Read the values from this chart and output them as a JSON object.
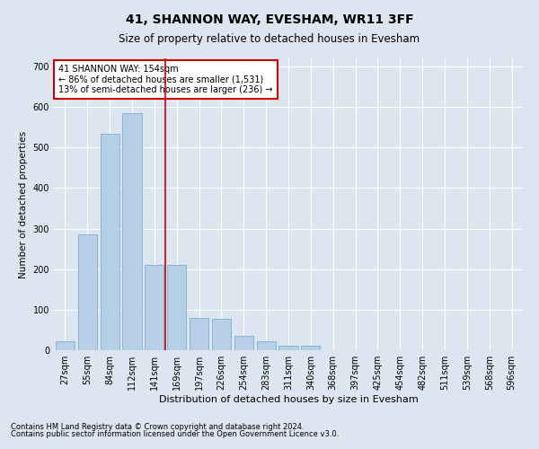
{
  "title": "41, SHANNON WAY, EVESHAM, WR11 3FF",
  "subtitle": "Size of property relative to detached houses in Evesham",
  "xlabel": "Distribution of detached houses by size in Evesham",
  "ylabel": "Number of detached properties",
  "categories": [
    "27sqm",
    "55sqm",
    "84sqm",
    "112sqm",
    "141sqm",
    "169sqm",
    "197sqm",
    "226sqm",
    "254sqm",
    "283sqm",
    "311sqm",
    "340sqm",
    "368sqm",
    "397sqm",
    "425sqm",
    "454sqm",
    "482sqm",
    "511sqm",
    "539sqm",
    "568sqm",
    "596sqm"
  ],
  "values": [
    22,
    285,
    535,
    585,
    210,
    210,
    80,
    78,
    36,
    22,
    10,
    10,
    0,
    0,
    0,
    0,
    0,
    0,
    0,
    0,
    0
  ],
  "bar_color": "#b8cfe8",
  "bar_edge_color": "#7bafd4",
  "highlight_bar_index": 4,
  "vline_color": "#cc0000",
  "vline_x": 4.5,
  "annotation_text": "41 SHANNON WAY: 154sqm\n← 86% of detached houses are smaller (1,531)\n13% of semi-detached houses are larger (236) →",
  "annotation_box_color": "white",
  "annotation_box_edge_color": "#cc0000",
  "ylim": [
    0,
    720
  ],
  "yticks": [
    0,
    100,
    200,
    300,
    400,
    500,
    600,
    700
  ],
  "background_color": "#dde5f0",
  "plot_bg_color": "#dde5f0",
  "footer_line1": "Contains HM Land Registry data © Crown copyright and database right 2024.",
  "footer_line2": "Contains public sector information licensed under the Open Government Licence v3.0.",
  "title_fontsize": 10,
  "subtitle_fontsize": 8.5,
  "ylabel_fontsize": 7.5,
  "xlabel_fontsize": 8,
  "tick_fontsize": 7,
  "ytick_fontsize": 7,
  "annotation_fontsize": 7,
  "footer_fontsize": 6,
  "bar_width": 0.85
}
